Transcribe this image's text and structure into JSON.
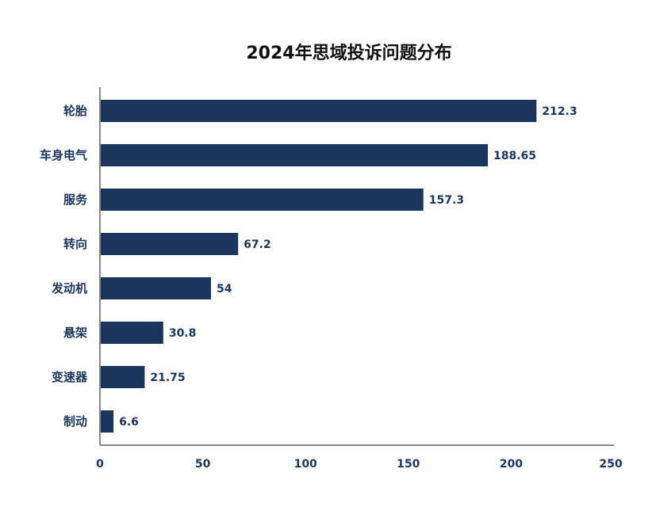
{
  "chart_data": {
    "type": "bar",
    "orientation": "horizontal",
    "title": "2024年思域投诉问题分布",
    "xlabel": "",
    "ylabel": "",
    "categories": [
      "轮胎",
      "车身电气",
      "服务",
      "转向",
      "发动机",
      "悬架",
      "变速器",
      "制动"
    ],
    "values": [
      212.3,
      188.65,
      157.3,
      67.2,
      54,
      30.8,
      21.75,
      6.6
    ],
    "value_labels": [
      "212.3",
      "188.65",
      "157.3",
      "67.2",
      "54",
      "30.8",
      "21.75",
      "6.6"
    ],
    "xlim": [
      0,
      250
    ],
    "xticks": [
      0,
      50,
      100,
      150,
      200,
      250
    ],
    "xtick_labels": [
      "0",
      "50",
      "100",
      "150",
      "200",
      "250"
    ],
    "bar_color": "#1b365d",
    "grid": false,
    "legend": "none"
  }
}
